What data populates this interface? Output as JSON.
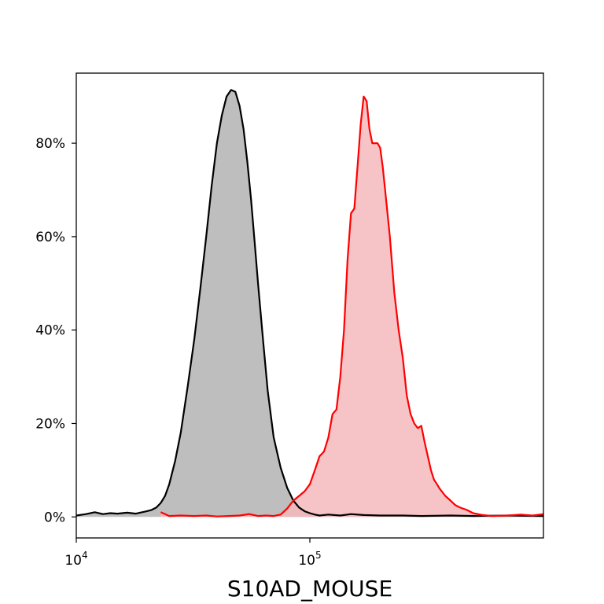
{
  "chart_data": {
    "type": "area",
    "title": "",
    "xlabel": "S10AD_MOUSE",
    "ylabel": "",
    "x_scale": "log",
    "xlim": [
      10000,
      1000000
    ],
    "ylim": [
      -4.5,
      95
    ],
    "grid": false,
    "legend": "none",
    "x_ticks": [
      {
        "value": 10000,
        "base": "10",
        "exp": "4"
      },
      {
        "value": 100000,
        "base": "10",
        "exp": "5"
      }
    ],
    "y_ticks": [
      {
        "value": 0,
        "label": "0%"
      },
      {
        "value": 20,
        "label": "20%"
      },
      {
        "value": 40,
        "label": "40%"
      },
      {
        "value": 60,
        "label": "60%"
      },
      {
        "value": 80,
        "label": "80%"
      }
    ],
    "series": [
      {
        "line_color": "#000000",
        "fill_color": "#b3b3b3",
        "x": [
          10000,
          11000,
          12000,
          13000,
          14000,
          15000,
          16500,
          18000,
          20000,
          21000,
          22000,
          23000,
          24000,
          25000,
          26500,
          28000,
          30000,
          32000,
          34000,
          36000,
          38000,
          40000,
          42000,
          44000,
          46000,
          48000,
          50000,
          52000,
          54000,
          56000,
          58000,
          60000,
          63000,
          66000,
          70000,
          75000,
          80000,
          85000,
          90000,
          95000,
          100000,
          105000,
          110000,
          120000,
          135000,
          150000,
          170000,
          200000,
          250000,
          300000,
          400000,
          500000,
          700000,
          1000000
        ],
        "y": [
          0.3,
          0.6,
          1.0,
          0.6,
          0.8,
          0.7,
          0.9,
          0.7,
          1.2,
          1.5,
          2.0,
          3.0,
          4.5,
          7.0,
          12,
          18,
          28,
          38,
          49,
          60,
          71,
          80,
          86,
          90,
          91.4,
          91,
          88,
          83,
          76,
          68,
          59,
          50,
          38,
          27,
          17,
          10.5,
          6.2,
          3.5,
          2.0,
          1.2,
          0.8,
          0.5,
          0.3,
          0.5,
          0.3,
          0.6,
          0.4,
          0.3,
          0.3,
          0.2,
          0.3,
          0.2,
          0.3,
          0.2
        ]
      },
      {
        "line_color": "#ff0000",
        "fill_color": "#f5b8bc",
        "x": [
          23000,
          25000,
          28000,
          32000,
          36000,
          40000,
          45000,
          50000,
          55000,
          60000,
          65000,
          70000,
          75000,
          80000,
          85000,
          90000,
          95000,
          100000,
          105000,
          110000,
          115000,
          120000,
          125000,
          130000,
          135000,
          140000,
          145000,
          150000,
          155000,
          160000,
          165000,
          170000,
          175000,
          180000,
          185000,
          190000,
          195000,
          200000,
          205000,
          210000,
          220000,
          230000,
          240000,
          250000,
          260000,
          270000,
          280000,
          290000,
          300000,
          310000,
          320000,
          330000,
          340000,
          350000,
          360000,
          380000,
          400000,
          420000,
          440000,
          470000,
          500000,
          550000,
          600000,
          700000,
          800000,
          900000,
          1000000
        ],
        "y": [
          1.0,
          0.2,
          0.3,
          0.2,
          0.3,
          0.1,
          0.2,
          0.3,
          0.6,
          0.2,
          0.3,
          0.2,
          0.5,
          1.8,
          3.5,
          4.5,
          5.5,
          7.0,
          10,
          13,
          14,
          17,
          22,
          23,
          30,
          40,
          55,
          65,
          66,
          75,
          84,
          90,
          89,
          83,
          80,
          80,
          80,
          79,
          75,
          70,
          60,
          48,
          40,
          34,
          26,
          22,
          20,
          19,
          19.5,
          16,
          13,
          10,
          8,
          7,
          6,
          4.5,
          3.5,
          2.5,
          2.0,
          1.5,
          0.8,
          0.4,
          0.2,
          0.3,
          0.5,
          0.3,
          0.6
        ]
      }
    ]
  }
}
